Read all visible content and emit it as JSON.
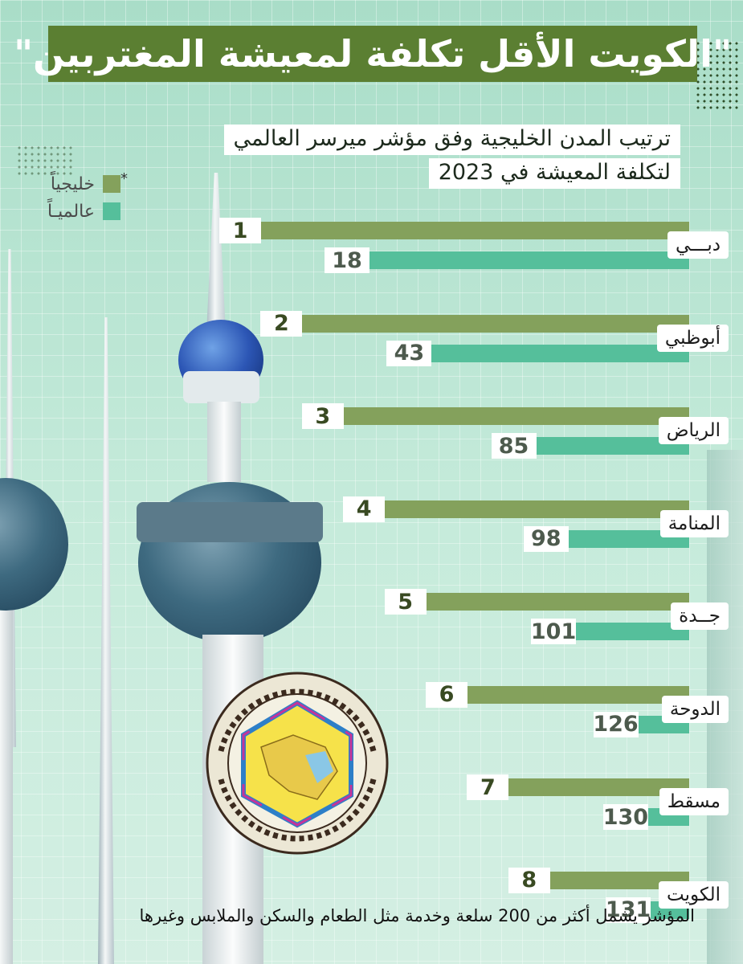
{
  "title": "\"الكويت الأقل تكلفة لمعيشة المغتربين\"",
  "subtitle_line1": "ترتيب المدن الخليجية وفق مؤشر ميرسر العالمي",
  "subtitle_line2": "لتكلفة المعيشة في 2023",
  "legend": {
    "marker": "*",
    "items": [
      {
        "label": "خليجياً",
        "color": "#84a15c"
      },
      {
        "label": "عالميـاً",
        "color": "#55bf9b"
      }
    ]
  },
  "footnote": "المؤشر يشمل أكثر من 200 سلعة وخدمة مثل الطعام والسكن والملابس وغيرها",
  "colors": {
    "title_bg": "#5b7f32",
    "gulf": "#84a15c",
    "global": "#55bf9b"
  },
  "chart_data": {
    "type": "bar",
    "orientation": "horizontal",
    "categories": [
      "دبـــي",
      "أبوظبي",
      "الرياض",
      "المنامة",
      "جــدة",
      "الدوحة",
      "مسقط",
      "الكويت"
    ],
    "series": [
      {
        "name": "خليجياً",
        "values": [
          1,
          2,
          3,
          4,
          5,
          6,
          7,
          8
        ]
      },
      {
        "name": "عالميـاً",
        "values": [
          18,
          43,
          85,
          98,
          101,
          126,
          130,
          131
        ]
      }
    ]
  }
}
